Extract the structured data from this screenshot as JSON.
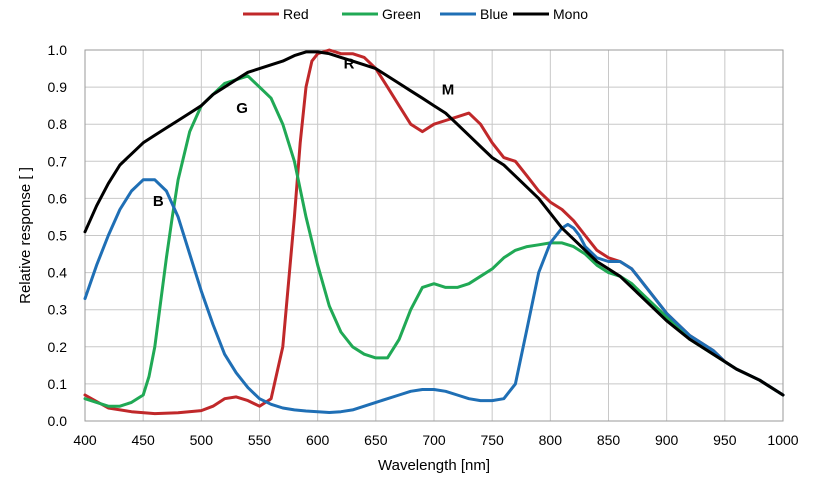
{
  "chart_data": {
    "type": "line",
    "xlabel": "Wavelength [nm]",
    "ylabel": "Relative response [ ]",
    "xlim": [
      400,
      1000
    ],
    "ylim": [
      0.0,
      1.0
    ],
    "xticks": [
      "400",
      "450",
      "500",
      "550",
      "600",
      "650",
      "700",
      "750",
      "800",
      "850",
      "900",
      "950",
      "1000"
    ],
    "yticks": [
      "0.0",
      "0.1",
      "0.2",
      "0.3",
      "0.4",
      "0.5",
      "0.6",
      "0.7",
      "0.8",
      "0.9",
      "1.0"
    ],
    "grid": true,
    "legend_position": "top",
    "series": [
      {
        "name": "Red",
        "color": "#c0282a",
        "x": [
          400,
          420,
          440,
          460,
          480,
          500,
          510,
          520,
          530,
          540,
          550,
          560,
          570,
          580,
          585,
          590,
          595,
          600,
          610,
          620,
          630,
          640,
          650,
          660,
          670,
          680,
          690,
          700,
          710,
          720,
          730,
          740,
          750,
          760,
          770,
          780,
          790,
          800,
          810,
          820,
          830,
          840,
          850,
          860,
          870,
          880,
          900,
          920,
          940,
          950,
          960,
          980,
          1000
        ],
        "y": [
          0.07,
          0.035,
          0.025,
          0.02,
          0.022,
          0.028,
          0.04,
          0.06,
          0.065,
          0.055,
          0.04,
          0.06,
          0.2,
          0.55,
          0.75,
          0.9,
          0.97,
          0.99,
          1.0,
          0.99,
          0.99,
          0.98,
          0.95,
          0.9,
          0.85,
          0.8,
          0.78,
          0.8,
          0.81,
          0.82,
          0.83,
          0.8,
          0.75,
          0.71,
          0.7,
          0.66,
          0.62,
          0.59,
          0.57,
          0.54,
          0.5,
          0.46,
          0.44,
          0.43,
          0.41,
          0.37,
          0.29,
          0.23,
          0.19,
          0.16,
          0.14,
          0.11,
          0.07
        ]
      },
      {
        "name": "Green",
        "color": "#20a955",
        "x": [
          400,
          410,
          420,
          430,
          440,
          450,
          455,
          460,
          465,
          470,
          475,
          480,
          490,
          500,
          510,
          520,
          530,
          540,
          550,
          560,
          570,
          580,
          590,
          600,
          610,
          620,
          630,
          640,
          650,
          660,
          670,
          680,
          690,
          700,
          710,
          720,
          730,
          740,
          750,
          760,
          770,
          780,
          790,
          800,
          810,
          820,
          830,
          840,
          850,
          860,
          870,
          880,
          900,
          920,
          940,
          960,
          980,
          1000
        ],
        "y": [
          0.06,
          0.05,
          0.04,
          0.04,
          0.05,
          0.07,
          0.12,
          0.2,
          0.32,
          0.44,
          0.55,
          0.65,
          0.78,
          0.85,
          0.88,
          0.91,
          0.92,
          0.93,
          0.9,
          0.87,
          0.8,
          0.7,
          0.55,
          0.42,
          0.31,
          0.24,
          0.2,
          0.18,
          0.17,
          0.17,
          0.22,
          0.3,
          0.36,
          0.37,
          0.36,
          0.36,
          0.37,
          0.39,
          0.41,
          0.44,
          0.46,
          0.47,
          0.475,
          0.48,
          0.48,
          0.47,
          0.45,
          0.42,
          0.4,
          0.39,
          0.37,
          0.34,
          0.28,
          0.22,
          0.18,
          0.14,
          0.11,
          0.07
        ]
      },
      {
        "name": "Blue",
        "color": "#1f6fb5",
        "x": [
          400,
          410,
          420,
          430,
          440,
          450,
          460,
          470,
          480,
          490,
          500,
          510,
          520,
          530,
          540,
          550,
          560,
          570,
          580,
          590,
          600,
          610,
          620,
          630,
          640,
          650,
          660,
          670,
          680,
          690,
          700,
          710,
          720,
          730,
          740,
          750,
          760,
          770,
          780,
          790,
          800,
          810,
          815,
          820,
          825,
          830,
          840,
          850,
          860,
          870,
          880,
          900,
          920,
          940,
          950,
          960,
          980,
          1000
        ],
        "y": [
          0.33,
          0.42,
          0.5,
          0.57,
          0.62,
          0.65,
          0.65,
          0.62,
          0.55,
          0.45,
          0.35,
          0.26,
          0.18,
          0.13,
          0.09,
          0.06,
          0.045,
          0.035,
          0.03,
          0.027,
          0.025,
          0.023,
          0.025,
          0.03,
          0.04,
          0.05,
          0.06,
          0.07,
          0.08,
          0.085,
          0.085,
          0.08,
          0.07,
          0.06,
          0.055,
          0.055,
          0.06,
          0.1,
          0.25,
          0.4,
          0.48,
          0.52,
          0.53,
          0.52,
          0.5,
          0.47,
          0.44,
          0.43,
          0.43,
          0.41,
          0.37,
          0.29,
          0.23,
          0.19,
          0.16,
          0.14,
          0.11,
          0.07
        ]
      },
      {
        "name": "Mono",
        "color": "#000000",
        "x": [
          400,
          410,
          420,
          430,
          440,
          450,
          460,
          470,
          480,
          490,
          500,
          510,
          520,
          530,
          540,
          550,
          560,
          570,
          580,
          590,
          600,
          610,
          620,
          630,
          640,
          650,
          660,
          670,
          680,
          690,
          700,
          710,
          720,
          730,
          740,
          750,
          760,
          770,
          780,
          790,
          800,
          810,
          820,
          830,
          840,
          850,
          860,
          870,
          880,
          900,
          920,
          940,
          960,
          980,
          1000
        ],
        "y": [
          0.51,
          0.58,
          0.64,
          0.69,
          0.72,
          0.75,
          0.77,
          0.79,
          0.81,
          0.83,
          0.85,
          0.88,
          0.9,
          0.92,
          0.94,
          0.95,
          0.96,
          0.97,
          0.985,
          0.995,
          0.995,
          0.99,
          0.98,
          0.97,
          0.96,
          0.95,
          0.93,
          0.91,
          0.89,
          0.87,
          0.85,
          0.83,
          0.8,
          0.77,
          0.74,
          0.71,
          0.69,
          0.66,
          0.63,
          0.6,
          0.56,
          0.52,
          0.49,
          0.46,
          0.43,
          0.41,
          0.39,
          0.36,
          0.33,
          0.27,
          0.22,
          0.18,
          0.14,
          0.11,
          0.07
        ]
      }
    ],
    "annotations": [
      {
        "text": "R",
        "x": 627,
        "y": 0.95
      },
      {
        "text": "M",
        "x": 712,
        "y": 0.88
      },
      {
        "text": "G",
        "x": 535,
        "y": 0.83
      },
      {
        "text": "B",
        "x": 463,
        "y": 0.58
      }
    ]
  }
}
